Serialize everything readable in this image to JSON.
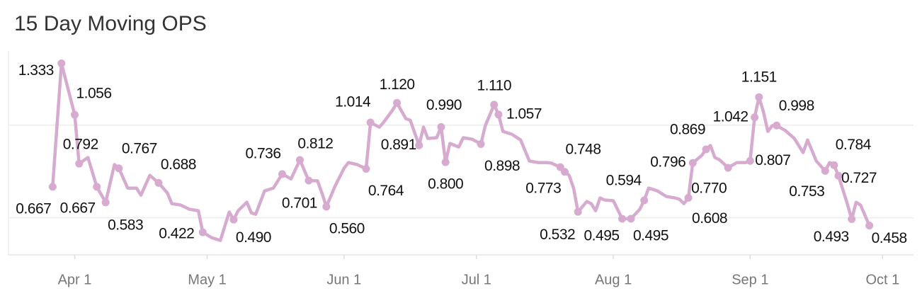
{
  "chart_data": {
    "type": "line",
    "title": "15 Day Moving OPS",
    "x": [
      -5,
      -3,
      0,
      1,
      3,
      5,
      7,
      9,
      10,
      12,
      14,
      15,
      17,
      19,
      21,
      22,
      24,
      26,
      28,
      29,
      31,
      33,
      35,
      36,
      37,
      39,
      40,
      41,
      43,
      45,
      47,
      49,
      51,
      53,
      55,
      56,
      57,
      59,
      61,
      62,
      64,
      66,
      67,
      69,
      70,
      72,
      73,
      75,
      76,
      78,
      79,
      80,
      82,
      83,
      84,
      85,
      87,
      88,
      90,
      92,
      93,
      95,
      96,
      97,
      99,
      101,
      103,
      105,
      107,
      108,
      110,
      111,
      112,
      113,
      114,
      116,
      117,
      118,
      119,
      120,
      122,
      124,
      126,
      128,
      129,
      130,
      132,
      134,
      136,
      137,
      138,
      139,
      140,
      142,
      143,
      144,
      145,
      146,
      148,
      150,
      152,
      153,
      154,
      155,
      156,
      157,
      158,
      159,
      161,
      163,
      165,
      166,
      168,
      170,
      171,
      172,
      173,
      175,
      176,
      177,
      178,
      180
    ],
    "series": [
      {
        "name": "15 Day Moving OPS",
        "color": "#d6abcf",
        "values": [
          0.667,
          1.333,
          1.056,
          0.792,
          0.825,
          0.667,
          0.583,
          0.787,
          0.767,
          0.66,
          0.66,
          0.622,
          0.729,
          0.688,
          0.634,
          0.576,
          0.569,
          0.546,
          0.538,
          0.422,
          0.393,
          0.378,
          0.531,
          0.49,
          0.538,
          0.584,
          0.527,
          0.519,
          0.645,
          0.66,
          0.736,
          0.71,
          0.812,
          0.701,
          0.699,
          0.634,
          0.56,
          0.672,
          0.767,
          0.798,
          0.787,
          0.764,
          1.014,
          0.989,
          1.016,
          1.081,
          1.12,
          1.035,
          1.027,
          0.891,
          0.989,
          0.928,
          0.932,
          0.99,
          0.8,
          0.901,
          0.882,
          0.932,
          0.924,
          0.898,
          0.997,
          1.11,
          1.057,
          0.966,
          0.951,
          0.92,
          0.806,
          0.798,
          0.798,
          0.795,
          0.773,
          0.748,
          0.729,
          0.66,
          0.532,
          0.588,
          0.576,
          0.538,
          0.607,
          0.596,
          0.592,
          0.495,
          0.495,
          0.546,
          0.594,
          0.66,
          0.645,
          0.615,
          0.607,
          0.6,
          0.576,
          0.608,
          0.796,
          0.836,
          0.869,
          0.89,
          0.825,
          0.814,
          0.77,
          0.798,
          0.798,
          0.807,
          1.042,
          1.151,
          1.073,
          0.966,
          0.997,
          0.998,
          0.97,
          0.928,
          0.852,
          0.92,
          0.806,
          0.753,
          0.798,
          0.784,
          0.727,
          0.576,
          0.493,
          0.584,
          0.569,
          0.458
        ],
        "value_labels": [
          "0.667",
          "1.333",
          "1.056",
          "0.792",
          null,
          "0.667",
          "0.583",
          null,
          "0.767",
          null,
          null,
          null,
          null,
          "0.688",
          null,
          null,
          null,
          null,
          null,
          "0.422",
          null,
          null,
          null,
          "0.490",
          null,
          null,
          null,
          null,
          null,
          null,
          "0.736",
          null,
          "0.812",
          "0.701",
          null,
          null,
          "0.560",
          null,
          null,
          null,
          null,
          "0.764",
          "1.014",
          null,
          null,
          null,
          "1.120",
          null,
          null,
          "0.891",
          null,
          null,
          null,
          "0.990",
          "0.800",
          null,
          null,
          null,
          null,
          "0.898",
          null,
          "1.110",
          "1.057",
          null,
          null,
          null,
          null,
          null,
          null,
          null,
          "0.773",
          "0.748",
          null,
          null,
          "0.532",
          null,
          null,
          null,
          null,
          null,
          null,
          "0.495",
          "0.495",
          null,
          "0.594",
          null,
          null,
          null,
          null,
          null,
          null,
          "0.608",
          "0.796",
          null,
          "0.869",
          null,
          null,
          null,
          "0.770",
          null,
          null,
          "0.807",
          "1.042",
          "1.151",
          null,
          null,
          null,
          "0.998",
          null,
          null,
          null,
          null,
          null,
          "0.753",
          null,
          "0.784",
          "0.727",
          null,
          "0.493",
          null,
          null,
          "0.458"
        ]
      }
    ],
    "xlim": [
      -15,
      190
    ],
    "xticks": [
      {
        "value": 0,
        "label": "Apr 1"
      },
      {
        "value": 30,
        "label": "May 1"
      },
      {
        "value": 61,
        "label": "Jun 1"
      },
      {
        "value": 91,
        "label": "Jul 1"
      },
      {
        "value": 122,
        "label": "Aug 1"
      },
      {
        "value": 153,
        "label": "Sep 1"
      },
      {
        "value": 183,
        "label": "Oct 1"
      }
    ],
    "ylim": [
      0.3,
      1.4
    ],
    "yticks": [
      0.5,
      1
    ],
    "grid": true
  }
}
